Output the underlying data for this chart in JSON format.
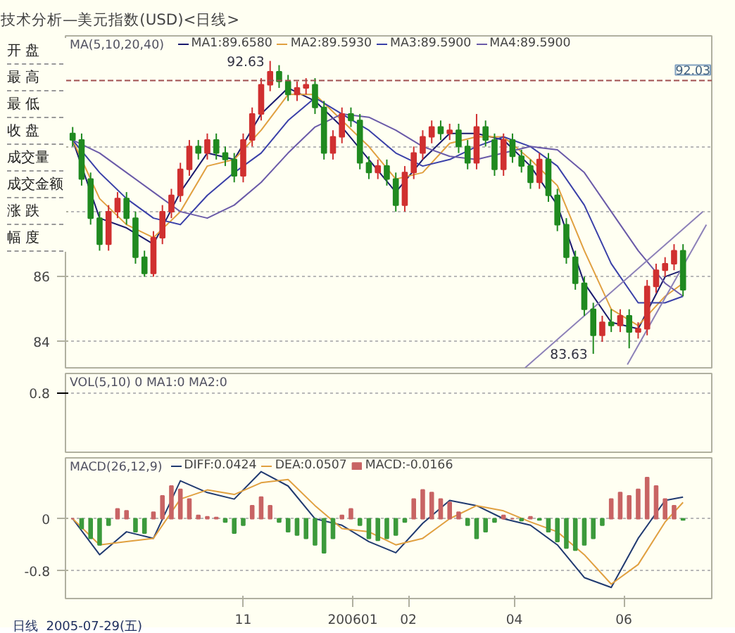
{
  "chart_data": [
    {
      "type": "candlestick",
      "title": "技术分析—美元指数(USD)<日线>",
      "legend_title": "MA(5,10,20,40)",
      "legend": "top left",
      "grid": "y",
      "x": [
        "2005-07-29",
        "2005-08-03",
        "2005-08-08",
        "2005-08-13",
        "2005-08-18",
        "2005-08-23",
        "2005-08-28",
        "2005-09-02",
        "2005-09-07",
        "2005-09-12",
        "2005-09-17",
        "2005-09-22",
        "2005-09-27",
        "2005-10-02",
        "2005-10-07",
        "2005-10-12",
        "2005-10-17",
        "2005-10-22",
        "2005-10-27",
        "2005-11-01",
        "2005-11-06",
        "2005-11-11",
        "2005-11-16",
        "2005-11-21",
        "2005-11-26",
        "2005-12-01",
        "2005-12-06",
        "2005-12-11",
        "2005-12-16",
        "2005-12-21",
        "2005-12-26",
        "2005-12-31",
        "2006-01-05",
        "2006-01-10",
        "2006-01-15",
        "2006-01-20",
        "2006-01-25",
        "2006-01-30",
        "2006-02-04",
        "2006-02-09",
        "2006-02-14",
        "2006-02-19",
        "2006-02-24",
        "2006-03-01",
        "2006-03-06",
        "2006-03-11",
        "2006-03-16",
        "2006-03-21",
        "2006-03-26",
        "2006-03-31",
        "2006-04-05",
        "2006-04-10",
        "2006-04-15",
        "2006-04-20",
        "2006-04-25",
        "2006-04-30",
        "2006-05-05",
        "2006-05-10",
        "2006-05-15",
        "2006-05-20",
        "2006-05-25",
        "2006-05-30",
        "2006-06-04",
        "2006-06-09",
        "2006-06-14",
        "2006-06-19",
        "2006-06-24",
        "2006-06-29",
        "2006-07-04"
      ],
      "ohlc": [
        [
          90.4,
          90.6,
          90.0,
          90.2
        ],
        [
          90.2,
          90.4,
          88.8,
          89.0
        ],
        [
          89.0,
          89.2,
          87.6,
          87.8
        ],
        [
          87.8,
          88.0,
          86.8,
          87.0
        ],
        [
          87.0,
          88.2,
          86.8,
          88.0
        ],
        [
          88.0,
          88.6,
          87.8,
          88.4
        ],
        [
          88.4,
          88.6,
          87.6,
          87.8
        ],
        [
          87.8,
          88.0,
          86.4,
          86.6
        ],
        [
          86.6,
          86.8,
          86.0,
          86.1
        ],
        [
          86.1,
          87.4,
          86.0,
          87.2
        ],
        [
          87.2,
          88.2,
          87.0,
          88.0
        ],
        [
          88.0,
          88.7,
          87.8,
          88.5
        ],
        [
          88.5,
          89.5,
          88.3,
          89.3
        ],
        [
          89.3,
          90.2,
          89.1,
          90.0
        ],
        [
          90.0,
          90.2,
          89.6,
          89.8
        ],
        [
          89.8,
          90.4,
          89.6,
          90.2
        ],
        [
          90.2,
          90.4,
          89.6,
          89.8
        ],
        [
          89.8,
          90.0,
          89.4,
          89.6
        ],
        [
          89.6,
          89.8,
          88.9,
          89.1
        ],
        [
          89.1,
          90.4,
          88.9,
          90.2
        ],
        [
          90.2,
          91.2,
          90.0,
          91.0
        ],
        [
          91.0,
          92.1,
          90.8,
          91.9
        ],
        [
          91.9,
          92.63,
          91.7,
          92.3
        ],
        [
          92.3,
          92.5,
          91.8,
          92.0
        ],
        [
          92.0,
          92.2,
          91.4,
          91.6
        ],
        [
          91.6,
          92.0,
          91.4,
          91.8
        ],
        [
          91.8,
          92.1,
          91.6,
          91.9
        ],
        [
          91.9,
          92.1,
          91.0,
          91.2
        ],
        [
          91.2,
          91.4,
          89.6,
          89.8
        ],
        [
          89.8,
          90.5,
          89.6,
          90.3
        ],
        [
          90.3,
          91.2,
          90.1,
          91.0
        ],
        [
          91.0,
          91.2,
          90.6,
          90.8
        ],
        [
          90.8,
          91.0,
          89.3,
          89.5
        ],
        [
          89.5,
          89.7,
          89.0,
          89.2
        ],
        [
          89.2,
          89.6,
          89.0,
          89.4
        ],
        [
          89.4,
          89.6,
          88.8,
          89.0
        ],
        [
          89.0,
          89.2,
          88.0,
          88.2
        ],
        [
          88.2,
          89.4,
          88.0,
          89.2
        ],
        [
          89.2,
          90.0,
          89.0,
          89.8
        ],
        [
          89.8,
          90.5,
          89.6,
          90.3
        ],
        [
          90.3,
          90.8,
          90.1,
          90.6
        ],
        [
          90.6,
          90.8,
          90.2,
          90.4
        ],
        [
          90.4,
          90.7,
          90.2,
          90.5
        ],
        [
          90.5,
          90.7,
          89.8,
          90.0
        ],
        [
          90.0,
          90.2,
          89.3,
          89.5
        ],
        [
          89.5,
          91.0,
          89.3,
          90.6
        ],
        [
          90.6,
          90.8,
          90.0,
          90.2
        ],
        [
          90.2,
          90.4,
          89.1,
          89.3
        ],
        [
          89.3,
          90.4,
          89.1,
          90.2
        ],
        [
          90.2,
          90.4,
          89.5,
          89.7
        ],
        [
          89.7,
          89.9,
          89.2,
          89.4
        ],
        [
          89.4,
          89.6,
          88.7,
          88.9
        ],
        [
          88.9,
          89.8,
          88.7,
          89.6
        ],
        [
          89.6,
          89.8,
          88.3,
          88.5
        ],
        [
          88.5,
          88.7,
          87.4,
          87.6
        ],
        [
          87.6,
          87.8,
          86.4,
          86.6
        ],
        [
          86.6,
          86.8,
          85.6,
          85.8
        ],
        [
          85.8,
          86.0,
          84.8,
          85.0
        ],
        [
          85.0,
          85.2,
          83.63,
          84.2
        ],
        [
          84.2,
          84.8,
          84.0,
          84.6
        ],
        [
          84.6,
          85.0,
          84.3,
          84.5
        ],
        [
          84.5,
          85.0,
          84.3,
          84.8
        ],
        [
          84.8,
          85.0,
          83.8,
          84.3
        ],
        [
          84.3,
          84.6,
          84.1,
          84.4
        ],
        [
          84.4,
          85.9,
          84.2,
          85.7
        ],
        [
          85.7,
          86.4,
          85.5,
          86.2
        ],
        [
          86.2,
          86.6,
          86.0,
          86.4
        ],
        [
          86.4,
          87.0,
          86.2,
          86.8
        ],
        [
          86.8,
          87.0,
          85.4,
          85.6
        ]
      ],
      "colors": [
        "#208a20",
        "#208a20",
        "#208a20",
        "#208a20",
        "#d03030",
        "#d03030",
        "#208a20",
        "#208a20",
        "#208a20",
        "#d03030",
        "#d03030",
        "#d03030",
        "#d03030",
        "#d03030",
        "#208a20",
        "#d03030",
        "#208a20",
        "#208a20",
        "#208a20",
        "#d03030",
        "#d03030",
        "#d03030",
        "#d03030",
        "#208a20",
        "#208a20",
        "#d03030",
        "#d03030",
        "#208a20",
        "#208a20",
        "#d03030",
        "#d03030",
        "#208a20",
        "#208a20",
        "#208a20",
        "#d03030",
        "#208a20",
        "#208a20",
        "#d03030",
        "#d03030",
        "#d03030",
        "#d03030",
        "#208a20",
        "#d03030",
        "#208a20",
        "#208a20",
        "#d03030",
        "#208a20",
        "#208a20",
        "#d03030",
        "#208a20",
        "#208a20",
        "#208a20",
        "#d03030",
        "#208a20",
        "#208a20",
        "#208a20",
        "#208a20",
        "#208a20",
        "#208a20",
        "#d03030",
        "#208a20",
        "#d03030",
        "#208a20",
        "#d03030",
        "#d03030",
        "#d03030",
        "#d03030",
        "#d03030",
        "#208a20"
      ],
      "series": [
        {
          "type": "line",
          "name": "MA1:89.6580",
          "color": "#1a1a6e",
          "x": [
            "2005-07-29",
            "2005-08-13",
            "2005-08-28",
            "2005-09-12",
            "2005-09-27",
            "2005-10-12",
            "2005-10-27",
            "2005-11-11",
            "2005-11-26",
            "2005-12-11",
            "2005-12-26",
            "2006-01-10",
            "2006-01-25",
            "2006-02-09",
            "2006-02-24",
            "2006-03-11",
            "2006-03-26",
            "2006-04-10",
            "2006-04-25",
            "2006-05-10",
            "2006-05-25",
            "2006-06-09",
            "2006-06-24",
            "2006-07-04"
          ],
          "values": [
            90.2,
            87.8,
            87.5,
            87.0,
            88.6,
            89.8,
            89.6,
            91.0,
            91.8,
            91.4,
            90.6,
            89.6,
            88.6,
            89.6,
            90.4,
            90.4,
            90.2,
            89.4,
            88.2,
            85.8,
            84.6,
            84.4,
            86.0,
            86.2
          ]
        },
        {
          "type": "line",
          "name": "MA2:89.5930",
          "color": "#e0a040",
          "x": [
            "2005-07-29",
            "2005-08-13",
            "2005-08-28",
            "2005-09-12",
            "2005-09-27",
            "2005-10-12",
            "2005-10-27",
            "2005-11-11",
            "2005-11-26",
            "2005-12-11",
            "2005-12-26",
            "2006-01-10",
            "2006-01-25",
            "2006-02-09",
            "2006-02-24",
            "2006-03-11",
            "2006-03-26",
            "2006-04-10",
            "2006-04-25",
            "2006-05-10",
            "2006-05-25",
            "2006-06-09",
            "2006-06-24",
            "2006-07-04"
          ],
          "values": [
            90.2,
            88.4,
            87.6,
            87.2,
            88.0,
            89.4,
            89.6,
            90.5,
            91.6,
            91.6,
            90.8,
            90.0,
            89.0,
            89.2,
            90.1,
            90.3,
            90.3,
            89.6,
            88.8,
            86.8,
            85.0,
            84.5,
            85.4,
            85.8
          ]
        },
        {
          "type": "line",
          "name": "MA3:89.5900",
          "color": "#3a40a8",
          "x": [
            "2005-07-29",
            "2005-08-13",
            "2005-08-28",
            "2005-09-12",
            "2005-09-27",
            "2005-10-12",
            "2005-10-27",
            "2005-11-11",
            "2005-11-26",
            "2005-12-11",
            "2005-12-26",
            "2006-01-10",
            "2006-01-25",
            "2006-02-09",
            "2006-02-24",
            "2006-03-11",
            "2006-03-26",
            "2006-04-10",
            "2006-04-25",
            "2006-05-10",
            "2006-05-25",
            "2006-06-09",
            "2006-06-24",
            "2006-07-04"
          ],
          "values": [
            90.2,
            89.2,
            88.4,
            87.8,
            87.6,
            88.5,
            89.2,
            89.8,
            90.8,
            91.5,
            91.0,
            90.5,
            89.8,
            89.4,
            89.6,
            90.0,
            90.3,
            90.0,
            89.4,
            88.2,
            86.4,
            85.2,
            85.2,
            85.4
          ]
        },
        {
          "type": "line",
          "name": "MA4:89.5900",
          "color": "#6a5aa8",
          "x": [
            "2005-07-29",
            "2005-08-13",
            "2005-08-28",
            "2005-09-12",
            "2005-09-27",
            "2005-10-12",
            "2005-10-27",
            "2005-11-11",
            "2005-11-26",
            "2005-12-11",
            "2005-12-26",
            "2006-01-10",
            "2006-01-25",
            "2006-02-09",
            "2006-02-24",
            "2006-03-11",
            "2006-03-26",
            "2006-04-10",
            "2006-04-25",
            "2006-05-10",
            "2006-05-25",
            "2006-06-09",
            "2006-06-24",
            "2006-07-04"
          ],
          "values": [
            90.2,
            89.8,
            89.2,
            88.6,
            88.0,
            87.8,
            88.2,
            88.9,
            89.8,
            90.6,
            91.0,
            90.9,
            90.5,
            90.0,
            89.7,
            89.6,
            89.8,
            90.0,
            89.9,
            89.2,
            88.0,
            86.8,
            85.8,
            85.4
          ]
        },
        {
          "type": "line",
          "color": "#8c80b8",
          "x": [
            "2006-04-07",
            "2006-07-15"
          ],
          "values": [
            83.2,
            88.0
          ]
        },
        {
          "type": "line",
          "color": "#8c80b8",
          "x": [
            "2006-06-03",
            "2006-07-17"
          ],
          "values": [
            83.3,
            87.6
          ]
        }
      ],
      "ref_lines": [
        {
          "axis": "y",
          "value": 92.03,
          "label": "92.03",
          "color": "#a05050",
          "line_style": "dashed"
        }
      ],
      "annotations": [
        {
          "text": "92.63",
          "x": "2005-11-16",
          "y": 92.63
        },
        {
          "text": "83.63",
          "x": "2006-05-15",
          "y": 83.63
        }
      ],
      "xlim": [
        "2005-07-25",
        "2006-07-20"
      ],
      "ylim": [
        83.2,
        93.4
      ],
      "yticks": [
        84,
        86,
        {
          "value": 88,
          "label": null
        },
        {
          "value": 90,
          "label": null
        }
      ]
    },
    {
      "type": "other",
      "annotations": [
        "开 盘",
        "最 高",
        "最 低",
        "收 盘",
        "成交量",
        "成交金额",
        "涨 跌",
        "幅 度"
      ]
    },
    {
      "type": "other",
      "title": "VOL(5,10) 0 MA1:0 MA2:0",
      "annotations": [
        "0.8"
      ]
    },
    {
      "type": "bar",
      "legend_title": "MACD(26,12,9)",
      "legend": "top left",
      "grid": "y",
      "x": [
        "2005-07-29",
        "2005-08-03",
        "2005-08-08",
        "2005-08-13",
        "2005-08-18",
        "2005-08-23",
        "2005-08-28",
        "2005-09-02",
        "2005-09-07",
        "2005-09-12",
        "2005-09-17",
        "2005-09-22",
        "2005-09-27",
        "2005-10-02",
        "2005-10-07",
        "2005-10-12",
        "2005-10-17",
        "2005-10-22",
        "2005-10-27",
        "2005-11-01",
        "2005-11-06",
        "2005-11-11",
        "2005-11-16",
        "2005-11-21",
        "2005-11-26",
        "2005-12-01",
        "2005-12-06",
        "2005-12-11",
        "2005-12-16",
        "2005-12-21",
        "2005-12-26",
        "2005-12-31",
        "2006-01-05",
        "2006-01-10",
        "2006-01-15",
        "2006-01-20",
        "2006-01-25",
        "2006-01-30",
        "2006-02-04",
        "2006-02-09",
        "2006-02-14",
        "2006-02-19",
        "2006-02-24",
        "2006-03-01",
        "2006-03-06",
        "2006-03-11",
        "2006-03-16",
        "2006-03-21",
        "2006-03-26",
        "2006-03-31",
        "2006-04-05",
        "2006-04-10",
        "2006-04-15",
        "2006-04-20",
        "2006-04-25",
        "2006-04-30",
        "2006-05-05",
        "2006-05-10",
        "2006-05-15",
        "2006-05-20",
        "2006-05-25",
        "2006-05-30",
        "2006-06-04",
        "2006-06-09",
        "2006-06-14",
        "2006-06-19",
        "2006-06-24",
        "2006-06-29",
        "2006-07-04"
      ],
      "series": [
        {
          "type": "line",
          "name": "DIFF:0.0424",
          "color": "#203a70",
          "x": [
            "2005-07-29",
            "2005-08-13",
            "2005-08-28",
            "2005-09-12",
            "2005-09-27",
            "2005-10-12",
            "2005-10-27",
            "2005-11-11",
            "2005-11-26",
            "2005-12-11",
            "2005-12-26",
            "2006-01-10",
            "2006-01-25",
            "2006-02-09",
            "2006-02-24",
            "2006-03-11",
            "2006-03-26",
            "2006-04-10",
            "2006-04-25",
            "2006-05-10",
            "2006-05-25",
            "2006-06-09",
            "2006-06-24",
            "2006-07-04"
          ],
          "values": [
            0.0,
            -0.55,
            -0.2,
            -0.3,
            0.58,
            0.4,
            0.3,
            0.72,
            0.5,
            0.0,
            -0.1,
            -0.35,
            -0.52,
            -0.07,
            0.28,
            0.2,
            0.0,
            -0.1,
            -0.4,
            -0.9,
            -1.05,
            -0.3,
            0.28,
            0.33
          ]
        },
        {
          "type": "line",
          "name": "DEA:0.0507",
          "color": "#e0a040",
          "x": [
            "2005-07-29",
            "2005-08-13",
            "2005-08-28",
            "2005-09-12",
            "2005-09-27",
            "2005-10-12",
            "2005-10-27",
            "2005-11-11",
            "2005-11-26",
            "2005-12-11",
            "2005-12-26",
            "2006-01-10",
            "2006-01-25",
            "2006-02-09",
            "2006-02-24",
            "2006-03-11",
            "2006-03-26",
            "2006-04-10",
            "2006-04-25",
            "2006-05-10",
            "2006-05-25",
            "2006-06-09",
            "2006-06-24",
            "2006-07-04"
          ],
          "values": [
            0.0,
            -0.4,
            -0.35,
            -0.3,
            0.3,
            0.44,
            0.37,
            0.55,
            0.6,
            0.2,
            -0.15,
            -0.2,
            -0.4,
            -0.3,
            0.0,
            0.2,
            0.12,
            -0.05,
            -0.2,
            -0.55,
            -1.0,
            -0.7,
            -0.05,
            0.25
          ]
        },
        {
          "type": "bar",
          "name": "MACD:-0.0166",
          "values": [
            0.0,
            -0.15,
            -0.3,
            -0.4,
            -0.1,
            0.15,
            0.12,
            -0.2,
            -0.22,
            0.1,
            0.35,
            0.5,
            0.45,
            0.3,
            0.05,
            0.03,
            0.02,
            -0.05,
            -0.22,
            -0.1,
            0.2,
            0.33,
            0.2,
            -0.05,
            -0.2,
            -0.25,
            -0.3,
            -0.4,
            -0.52,
            -0.3,
            0.05,
            0.15,
            -0.1,
            -0.3,
            -0.33,
            -0.3,
            -0.25,
            -0.05,
            0.3,
            0.44,
            0.4,
            0.3,
            0.25,
            0.1,
            -0.1,
            -0.3,
            -0.2,
            -0.05,
            0.05,
            0.0,
            -0.03,
            0.03,
            -0.02,
            -0.2,
            -0.35,
            -0.45,
            -0.48,
            -0.4,
            -0.3,
            -0.1,
            0.3,
            0.4,
            0.35,
            0.45,
            0.63,
            0.5,
            0.3,
            0.2,
            -0.02
          ],
          "colors": [
            "#c86464",
            "#3c9a3c",
            "#3c9a3c",
            "#3c9a3c",
            "#3c9a3c",
            "#c86464",
            "#c86464",
            "#3c9a3c",
            "#3c9a3c",
            "#c86464",
            "#c86464",
            "#c86464",
            "#c86464",
            "#c86464",
            "#c86464",
            "#c86464",
            "#c86464",
            "#3c9a3c",
            "#3c9a3c",
            "#3c9a3c",
            "#c86464",
            "#c86464",
            "#c86464",
            "#3c9a3c",
            "#3c9a3c",
            "#3c9a3c",
            "#3c9a3c",
            "#3c9a3c",
            "#3c9a3c",
            "#3c9a3c",
            "#c86464",
            "#c86464",
            "#3c9a3c",
            "#3c9a3c",
            "#3c9a3c",
            "#3c9a3c",
            "#3c9a3c",
            "#3c9a3c",
            "#c86464",
            "#c86464",
            "#c86464",
            "#c86464",
            "#c86464",
            "#c86464",
            "#3c9a3c",
            "#3c9a3c",
            "#3c9a3c",
            "#3c9a3c",
            "#c86464",
            "#c86464",
            "#3c9a3c",
            "#c86464",
            "#3c9a3c",
            "#3c9a3c",
            "#3c9a3c",
            "#3c9a3c",
            "#3c9a3c",
            "#3c9a3c",
            "#3c9a3c",
            "#3c9a3c",
            "#c86464",
            "#c86464",
            "#c86464",
            "#c86464",
            "#c86464",
            "#c86464",
            "#c86464",
            "#c86464",
            "#3c9a3c"
          ]
        }
      ],
      "annotations": [
        "日线",
        "2005-07-29(五)"
      ],
      "xlim": [
        "2005-07-25",
        "2006-07-20"
      ],
      "ylim": [
        -1.22,
        0.93
      ],
      "yticks": [
        -0.8,
        0
      ],
      "xticks": [
        {
          "value": "2005-11-01",
          "label": "11"
        },
        {
          "value": "2006-01-01",
          "label": "200601"
        },
        {
          "value": "2006-02-01",
          "label": "02"
        },
        {
          "value": "2006-04-01",
          "label": "04"
        },
        {
          "value": "2006-06-01",
          "label": "06"
        }
      ]
    }
  ]
}
